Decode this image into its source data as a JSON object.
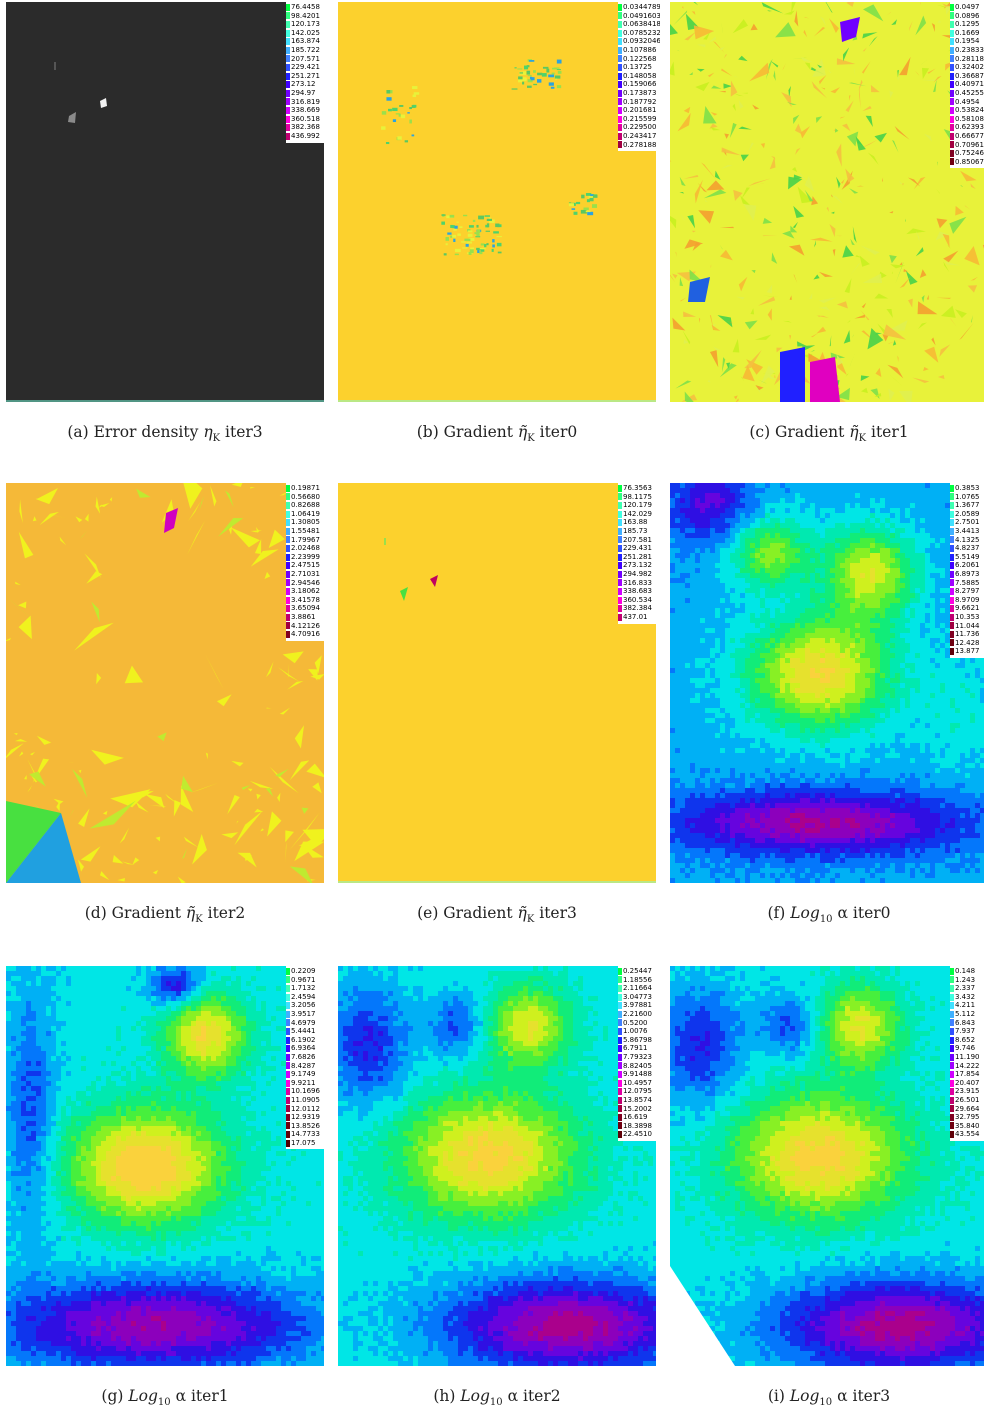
{
  "panels": [
    {
      "id": "a",
      "caption": "(a) Error density η_K iter3",
      "caption_parts": {
        "label": "(a) Error density",
        "math": "η",
        "sub": "K",
        "suffix": "iter3"
      },
      "kind": "dark",
      "legend": [
        "76.4458",
        "98.4201",
        "120.173",
        "142.025",
        "163.874",
        "185.722",
        "207.571",
        "229.421",
        "251.271",
        "273.12",
        "294.97",
        "316.819",
        "338.669",
        "360.518",
        "382.368",
        "436.992"
      ]
    },
    {
      "id": "b",
      "caption": "(b) Gradient η̃_K iter0",
      "caption_parts": {
        "label": "(b) Gradient",
        "math": "η̃",
        "sub": "K",
        "suffix": "iter0"
      },
      "kind": "flat-gold",
      "legend": [
        "0.0344789",
        "0.0491603",
        "0.0638418",
        "0.0785232",
        "0.0932046",
        "0.107886",
        "0.122568",
        "0.13725",
        "0.148058",
        "0.159066",
        "0.173873",
        "0.187792",
        "0.201681",
        "0.215599",
        "0.229500",
        "0.243417",
        "0.278188"
      ]
    },
    {
      "id": "c",
      "caption": "(c) Gradient η̃_K iter1",
      "caption_parts": {
        "label": "(c) Gradient",
        "math": "η̃",
        "sub": "K",
        "suffix": "iter1"
      },
      "kind": "mesh-yellow",
      "legend": [
        "0.0497",
        "0.0896",
        "0.1295",
        "0.1669",
        "0.1954",
        "0.23833",
        "0.28118",
        "0.32402",
        "0.36687",
        "0.40971",
        "0.45255",
        "0.4954",
        "0.53824",
        "0.58108",
        "0.62393",
        "0.66677",
        "0.70961",
        "0.75246",
        "0.85067"
      ]
    },
    {
      "id": "d",
      "caption": "(d) Gradient η̃_K iter2",
      "caption_parts": {
        "label": "(d) Gradient",
        "math": "η̃",
        "sub": "K",
        "suffix": "iter2"
      },
      "kind": "mesh-gold",
      "legend": [
        "0.19871",
        "0.56680",
        "0.82688",
        "1.06419",
        "1.30805",
        "1.55481",
        "1.79967",
        "2.02468",
        "2.23999",
        "2.47515",
        "2.71031",
        "2.94546",
        "3.18062",
        "3.41578",
        "3.65094",
        "3.8861",
        "4.12126",
        "4.70916"
      ]
    },
    {
      "id": "e",
      "caption": "(e) Gradient η̃_K iter3",
      "caption_parts": {
        "label": "(e) Gradient",
        "math": "η̃",
        "sub": "K",
        "suffix": "iter3"
      },
      "kind": "flat-gold-sparse",
      "legend": [
        "76.3563",
        "98.1175",
        "120.179",
        "142.029",
        "163.88",
        "185.73",
        "207.581",
        "229.431",
        "251.281",
        "273.132",
        "294.982",
        "316.833",
        "338.683",
        "360.534",
        "382.384",
        "437.01"
      ]
    },
    {
      "id": "f",
      "caption": "(f) Log10α iter0",
      "caption_parts": {
        "label": "(f)",
        "math": "Log",
        "sub": "10",
        "suffix": "α iter0"
      },
      "kind": "alpha0",
      "legend": [
        "0.3853",
        "1.0765",
        "1.3677",
        "2.0589",
        "2.7501",
        "3.4413",
        "4.1325",
        "4.8237",
        "5.5149",
        "6.2061",
        "6.8973",
        "7.5885",
        "8.2797",
        "8.9709",
        "9.6621",
        "10.353",
        "11.044",
        "11.736",
        "12.428",
        "13.877"
      ]
    },
    {
      "id": "g",
      "caption": "(g) Log10α iter1",
      "caption_parts": {
        "label": "(g)",
        "math": "Log",
        "sub": "10",
        "suffix": "α iter1"
      },
      "kind": "alpha1",
      "legend": [
        "0.2209",
        "0.9671",
        "1.7132",
        "2.4594",
        "3.2056",
        "3.9517",
        "4.6979",
        "5.4441",
        "6.1902",
        "6.9364",
        "7.6826",
        "8.4287",
        "9.1749",
        "9.9211",
        "10.1696",
        "11.0905",
        "12.0112",
        "12.9319",
        "13.8526",
        "14.7733",
        "17.075"
      ]
    },
    {
      "id": "h",
      "caption": "(h) Log10α iter2",
      "caption_parts": {
        "label": "(h)",
        "math": "Log",
        "sub": "10",
        "suffix": "α iter2"
      },
      "kind": "alpha2",
      "legend": [
        "0.25447",
        "1.18556",
        "2.11664",
        "3.04773",
        "3.97881",
        "2.21600",
        "0.5200",
        "1.0076",
        "5.86798",
        "6.7911",
        "7.79323",
        "8.82405",
        "9.91488",
        "10.4957",
        "12.0795",
        "13.8574",
        "15.2002",
        "16.619",
        "18.3898",
        "22.4510"
      ]
    },
    {
      "id": "i",
      "caption": "(i) Log10α iter3",
      "caption_parts": {
        "label": "(i)",
        "math": "Log",
        "sub": "10",
        "suffix": "α iter3"
      },
      "kind": "alpha3",
      "legend": [
        "0.148",
        "1.243",
        "2.337",
        "3.432",
        "4.211",
        "5.112",
        "6.843",
        "7.937",
        "8.652",
        "9.746",
        "11.190",
        "14.222",
        "17.854",
        "20.407",
        "23.915",
        "26.501",
        "29.664",
        "32.795",
        "35.840",
        "43.554"
      ]
    }
  ]
}
